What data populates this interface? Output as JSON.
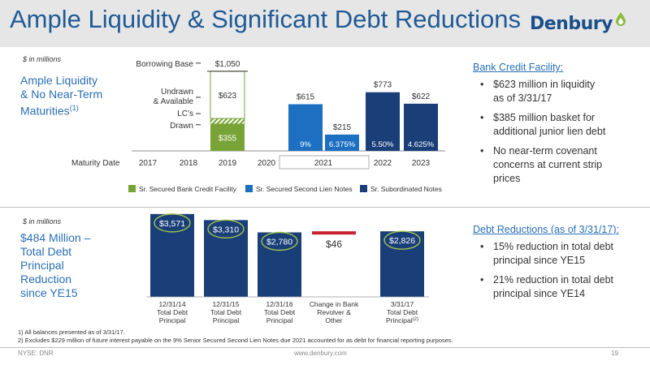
{
  "header": {
    "title": "Ample Liquidity & Significant Debt Reductions",
    "logo_text": "Denbury"
  },
  "top": {
    "units": "$ in millions",
    "side_heading_line1": "Ample Liquidity",
    "side_heading_line2": "& No Near-Term",
    "side_heading_line3": "Maturities",
    "side_heading_sup": "(1)",
    "labels": {
      "borrowing_base": "Borrowing Base",
      "undrawn": "Undrawn",
      "available": "& Available",
      "lcs": "LC’s",
      "drawn": "Drawn",
      "maturity_date": "Maturity Date"
    }
  },
  "right_top": {
    "heading": "Bank Credit Facility:",
    "bullets": [
      [
        "$623 million in liquidity",
        "as of 3/31/17"
      ],
      [
        "$385 million basket for",
        "additional junior lien debt"
      ],
      [
        "No near-term covenant",
        "concerns at current strip",
        "prices"
      ]
    ]
  },
  "bottom": {
    "units": "$ in millions",
    "side_heading": [
      "$484 Million –",
      "Total Debt",
      "Principal",
      "Reduction",
      "since YE15"
    ]
  },
  "right_bottom": {
    "heading": "Debt Reductions (as of 3/31/17):",
    "bullets": [
      [
        "15% reduction in total debt",
        "principal since YE15"
      ],
      [
        "21% reduction in total debt",
        "principal since YE14"
      ]
    ]
  },
  "footnotes": {
    "f1": "1)   All balances presented as of 3/31/17.",
    "f2": "2)   Excludes $229 million of future interest payable on the 9% Senior Secured Second Lien Notes due 2021 accounted for as debt for financial reporting purposes."
  },
  "footer": {
    "ticker": "NYSE: DNR",
    "url": "www.denbury.com",
    "page": "19"
  },
  "colors": {
    "title_blue": "#1f5a96",
    "green": "#77a337",
    "light_blue": "#1d6fc2",
    "navy": "#1a3f78",
    "red": "#c8202f",
    "circle_green": "#9fc24d"
  },
  "chart_data": [
    {
      "type": "bar",
      "categories": [
        "2017",
        "2018",
        "2019",
        "2020",
        "2021",
        "2022",
        "2023"
      ],
      "xlabel": "Maturity Date",
      "legend_position": "bottom",
      "legend": [
        "Sr. Secured Bank Credit Facility",
        "Sr. Secured Second Lien Notes",
        "Sr. Subordinated Notes"
      ],
      "series": [
        {
          "name": "Sr. Secured Bank Credit Facility",
          "color": "#77a337",
          "points": [
            {
              "x": "2019",
              "drawn": 355,
              "lcs": 72,
              "undrawn": 623,
              "borrowing_base": 1050,
              "labels": {
                "drawn": "$355",
                "undrawn": "$623",
                "borrowing_base": "$1,050"
              }
            }
          ]
        },
        {
          "name": "Sr. Secured Second Lien Notes",
          "color": "#1d6fc2",
          "points": [
            {
              "x": "2021",
              "value": 615,
              "label": "$615",
              "rate": "9%"
            },
            {
              "x": "2021",
              "value": 215,
              "label": "$215",
              "rate": "6.375%"
            }
          ]
        },
        {
          "name": "Sr. Subordinated Notes",
          "color": "#1a3f78",
          "points": [
            {
              "x": "2022",
              "value": 773,
              "label": "$773",
              "rate": "5.50%"
            },
            {
              "x": "2023",
              "value": 622,
              "label": "$622",
              "rate": "4.625%"
            }
          ]
        }
      ]
    },
    {
      "type": "bar",
      "categories": [
        "12/31/14 Total Debt Principal",
        "12/31/15 Total Debt Principal",
        "12/31/16 Total Debt Principal",
        "Change in Bank Revolver & Other",
        "3/31/17 Total Debt Principal"
      ],
      "category_lines": [
        [
          "12/31/14",
          "Total Debt",
          "Principal"
        ],
        [
          "12/31/15",
          "Total Debt",
          "Principal"
        ],
        [
          "12/31/16",
          "Total Debt",
          "Principal"
        ],
        [
          "Change in Bank",
          "Revolver &",
          "Other"
        ],
        [
          "3/31/17",
          "Total Debt",
          "Principal"
        ]
      ],
      "category_sup": [
        "",
        "",
        "",
        "",
        "(2)"
      ],
      "values": [
        3571,
        3310,
        2780,
        46,
        2826
      ],
      "labels": [
        "$3,571",
        "$3,310",
        "$2,780",
        "$46",
        "$2,826"
      ],
      "kinds": [
        "total",
        "total",
        "total",
        "change",
        "total"
      ],
      "circled": [
        true,
        true,
        true,
        false,
        true
      ]
    }
  ]
}
